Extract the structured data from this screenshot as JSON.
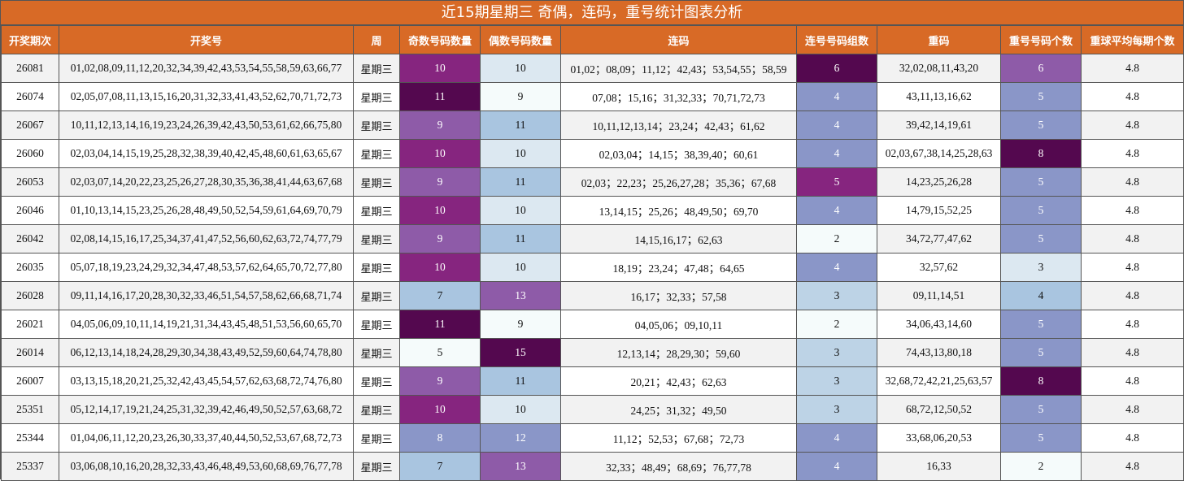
{
  "title": "近15期星期三 奇偶，连码，重号统计图表分析",
  "headers": [
    "开奖期次",
    "开奖号",
    "周",
    "奇数号码数量",
    "偶数号码数量",
    "连码",
    "连号号码组数",
    "重码",
    "重号号码个数",
    "重球平均每期个数"
  ],
  "rows": [
    {
      "issue": "26081",
      "numbers": "01,02,08,09,11,12,20,32,34,39,42,43,53,54,55,58,59,63,66,77",
      "week": "星期三",
      "odd": "10",
      "even": "10",
      "consecutive": "01,02；08,09；11,12；42,43；53,54,55；58,59",
      "consec_groups": "6",
      "repeat": "32,02,08,11,43,20",
      "repeat_count": "6",
      "avg": "4.8"
    },
    {
      "issue": "26074",
      "numbers": "02,05,07,08,11,13,15,16,20,31,32,33,41,43,52,62,70,71,72,73",
      "week": "星期三",
      "odd": "11",
      "even": "9",
      "consecutive": "07,08；15,16；31,32,33；70,71,72,73",
      "consec_groups": "4",
      "repeat": "43,11,13,16,62",
      "repeat_count": "5",
      "avg": "4.8"
    },
    {
      "issue": "26067",
      "numbers": "10,11,12,13,14,16,19,23,24,26,39,42,43,50,53,61,62,66,75,80",
      "week": "星期三",
      "odd": "9",
      "even": "11",
      "consecutive": "10,11,12,13,14；23,24；42,43；61,62",
      "consec_groups": "4",
      "repeat": "39,42,14,19,61",
      "repeat_count": "5",
      "avg": "4.8"
    },
    {
      "issue": "26060",
      "numbers": "02,03,04,14,15,19,25,28,32,38,39,40,42,45,48,60,61,63,65,67",
      "week": "星期三",
      "odd": "10",
      "even": "10",
      "consecutive": "02,03,04；14,15；38,39,40；60,61",
      "consec_groups": "4",
      "repeat": "02,03,67,38,14,25,28,63",
      "repeat_count": "8",
      "avg": "4.8"
    },
    {
      "issue": "26053",
      "numbers": "02,03,07,14,20,22,23,25,26,27,28,30,35,36,38,41,44,63,67,68",
      "week": "星期三",
      "odd": "9",
      "even": "11",
      "consecutive": "02,03；22,23；25,26,27,28；35,36；67,68",
      "consec_groups": "5",
      "repeat": "14,23,25,26,28",
      "repeat_count": "5",
      "avg": "4.8"
    },
    {
      "issue": "26046",
      "numbers": "01,10,13,14,15,23,25,26,28,48,49,50,52,54,59,61,64,69,70,79",
      "week": "星期三",
      "odd": "10",
      "even": "10",
      "consecutive": "13,14,15；25,26；48,49,50；69,70",
      "consec_groups": "4",
      "repeat": "14,79,15,52,25",
      "repeat_count": "5",
      "avg": "4.8"
    },
    {
      "issue": "26042",
      "numbers": "02,08,14,15,16,17,25,34,37,41,47,52,56,60,62,63,72,74,77,79",
      "week": "星期三",
      "odd": "9",
      "even": "11",
      "consecutive": "14,15,16,17；62,63",
      "consec_groups": "2",
      "repeat": "34,72,77,47,62",
      "repeat_count": "5",
      "avg": "4.8"
    },
    {
      "issue": "26035",
      "numbers": "05,07,18,19,23,24,29,32,34,47,48,53,57,62,64,65,70,72,77,80",
      "week": "星期三",
      "odd": "10",
      "even": "10",
      "consecutive": "18,19；23,24；47,48；64,65",
      "consec_groups": "4",
      "repeat": "32,57,62",
      "repeat_count": "3",
      "avg": "4.8"
    },
    {
      "issue": "26028",
      "numbers": "09,11,14,16,17,20,28,30,32,33,46,51,54,57,58,62,66,68,71,74",
      "week": "星期三",
      "odd": "7",
      "even": "13",
      "consecutive": "16,17；32,33；57,58",
      "consec_groups": "3",
      "repeat": "09,11,14,51",
      "repeat_count": "4",
      "avg": "4.8"
    },
    {
      "issue": "26021",
      "numbers": "04,05,06,09,10,11,14,19,21,31,34,43,45,48,51,53,56,60,65,70",
      "week": "星期三",
      "odd": "11",
      "even": "9",
      "consecutive": "04,05,06；09,10,11",
      "consec_groups": "2",
      "repeat": "34,06,43,14,60",
      "repeat_count": "5",
      "avg": "4.8"
    },
    {
      "issue": "26014",
      "numbers": "06,12,13,14,18,24,28,29,30,34,38,43,49,52,59,60,64,74,78,80",
      "week": "星期三",
      "odd": "5",
      "even": "15",
      "consecutive": "12,13,14；28,29,30；59,60",
      "consec_groups": "3",
      "repeat": "74,43,13,80,18",
      "repeat_count": "5",
      "avg": "4.8"
    },
    {
      "issue": "26007",
      "numbers": "03,13,15,18,20,21,25,32,42,43,45,54,57,62,63,68,72,74,76,80",
      "week": "星期三",
      "odd": "9",
      "even": "11",
      "consecutive": "20,21；42,43；62,63",
      "consec_groups": "3",
      "repeat": "32,68,72,42,21,25,63,57",
      "repeat_count": "8",
      "avg": "4.8"
    },
    {
      "issue": "25351",
      "numbers": "05,12,14,17,19,21,24,25,31,32,39,42,46,49,50,52,57,63,68,72",
      "week": "星期三",
      "odd": "10",
      "even": "10",
      "consecutive": "24,25；31,32；49,50",
      "consec_groups": "3",
      "repeat": "68,72,12,50,52",
      "repeat_count": "5",
      "avg": "4.8"
    },
    {
      "issue": "25344",
      "numbers": "01,04,06,11,12,20,23,26,30,33,37,40,44,50,52,53,67,68,72,73",
      "week": "星期三",
      "odd": "8",
      "even": "12",
      "consecutive": "11,12；52,53；67,68；72,73",
      "consec_groups": "4",
      "repeat": "33,68,06,20,53",
      "repeat_count": "5",
      "avg": "4.8"
    },
    {
      "issue": "25337",
      "numbers": "03,06,08,10,16,20,28,32,33,43,46,48,49,53,60,68,69,76,77,78",
      "week": "星期三",
      "odd": "7",
      "even": "13",
      "consecutive": "32,33；48,49；68,69；76,77,78",
      "consec_groups": "4",
      "repeat": "16,33",
      "repeat_count": "2",
      "avg": "4.8"
    }
  ],
  "colors": {
    "header_bg": "#d86a26",
    "scale": {
      "2": "#f5fbfb",
      "3": "#bdd3e6",
      "4": "#a9c5e0",
      "5": "#f5fbfb",
      "6": "#8e5ba8",
      "7": "#a9c5e0",
      "8": "#8a96c8",
      "9": "#8e5ba8",
      "10": "#86257f",
      "11": "#54084f",
      "12": "#8a96c8",
      "13": "#8e5ba8",
      "15": "#54084f"
    },
    "even_scale": {
      "9": "#f5fbfb",
      "10": "#dce8f1",
      "11": "#a9c5e0",
      "12": "#8a96c8",
      "13": "#8e5ba8",
      "15": "#54084f"
    },
    "groups_scale": {
      "2": "#f5fbfb",
      "3": "#bdd3e6",
      "4": "#8a96c8",
      "5": "#86257f",
      "6": "#54084f"
    },
    "repeat_scale": {
      "2": "#f5fbfb",
      "3": "#dce8f1",
      "4": "#a9c5e0",
      "5": "#8a96c8",
      "6": "#8e5ba8",
      "8": "#54084f"
    },
    "odd_scale": {
      "5": "#f5fbfb",
      "7": "#a9c5e0",
      "8": "#8a96c8",
      "9": "#8e5ba8",
      "10": "#86257f",
      "11": "#54084f"
    }
  }
}
